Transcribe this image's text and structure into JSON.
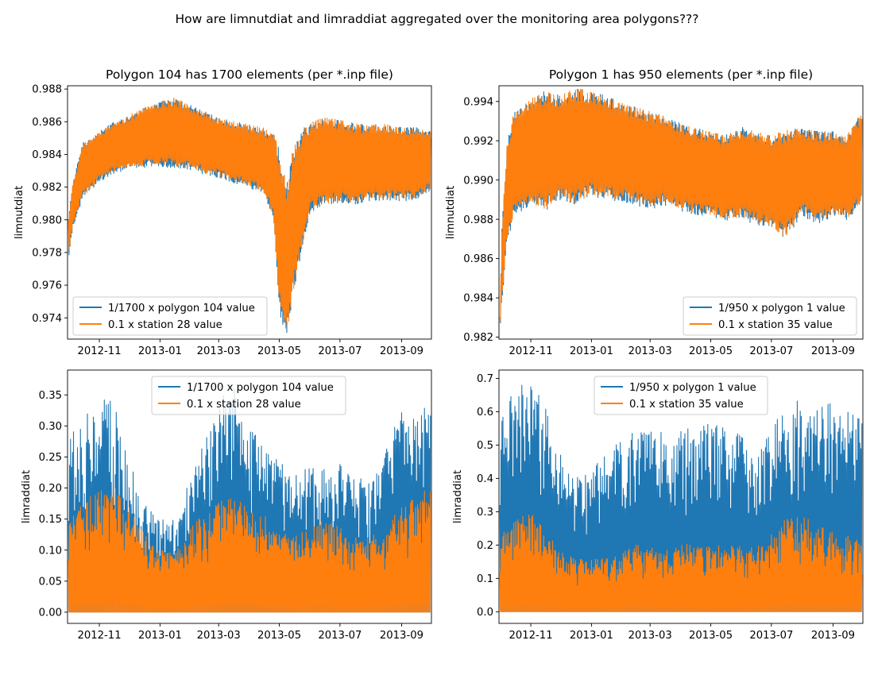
{
  "figure": {
    "suptitle": "How are limnutdiat and limraddiat aggregated over the monitoring area polygons???"
  },
  "chart_data": [
    {
      "type": "line",
      "title": "Polygon 104 has 1700 elements (per *.inp file)",
      "xlabel": "",
      "ylabel": "limnutdiat",
      "x_range": [
        "2012-09-30",
        "2013-10-01"
      ],
      "ylim": [
        0.9727,
        0.9882
      ],
      "x_ticks": [
        "2012-11",
        "2013-01",
        "2013-03",
        "2013-05",
        "2013-07",
        "2013-09"
      ],
      "y_ticks": [
        "0.974",
        "0.976",
        "0.978",
        "0.980",
        "0.982",
        "0.984",
        "0.986",
        "0.988"
      ],
      "legend_position": "lower-left",
      "grid": false,
      "band": "min-max envelope of high-frequency oscillation",
      "series": [
        {
          "name": "1/1700 x polygon 104 value",
          "color": "#1f77b4",
          "x": [
            "2012-10-01",
            "2012-10-05",
            "2012-10-15",
            "2012-11-01",
            "2012-11-15",
            "2012-12-01",
            "2012-12-15",
            "2013-01-01",
            "2013-01-15",
            "2013-02-01",
            "2013-02-15",
            "2013-03-01",
            "2013-03-15",
            "2013-04-01",
            "2013-04-15",
            "2013-04-25",
            "2013-05-01",
            "2013-05-08",
            "2013-05-15",
            "2013-05-25",
            "2013-06-01",
            "2013-06-15",
            "2013-07-01",
            "2013-07-15",
            "2013-08-01",
            "2013-08-15",
            "2013-09-01",
            "2013-09-15",
            "2013-09-30"
          ],
          "min": [
            0.9778,
            0.9795,
            0.9815,
            0.9825,
            0.983,
            0.9833,
            0.9834,
            0.9835,
            0.9834,
            0.9833,
            0.983,
            0.9828,
            0.9825,
            0.9822,
            0.9818,
            0.9805,
            0.975,
            0.9731,
            0.976,
            0.979,
            0.9808,
            0.9812,
            0.9813,
            0.9812,
            0.9814,
            0.9815,
            0.9814,
            0.9815,
            0.982
          ],
          "max": [
            0.98,
            0.982,
            0.9845,
            0.9852,
            0.9858,
            0.9862,
            0.9866,
            0.987,
            0.9872,
            0.9868,
            0.9864,
            0.986,
            0.9858,
            0.9856,
            0.9854,
            0.985,
            0.9838,
            0.9815,
            0.984,
            0.9852,
            0.9856,
            0.986,
            0.9858,
            0.9856,
            0.9855,
            0.9856,
            0.9854,
            0.9854,
            0.9852
          ]
        },
        {
          "name": "0.1 x station 28 value",
          "color": "#ff7f0e",
          "x": [
            "2012-10-01",
            "2012-10-05",
            "2012-10-15",
            "2012-11-01",
            "2012-11-15",
            "2012-12-01",
            "2012-12-15",
            "2013-01-01",
            "2013-01-15",
            "2013-02-01",
            "2013-02-15",
            "2013-03-01",
            "2013-03-15",
            "2013-04-01",
            "2013-04-15",
            "2013-04-25",
            "2013-05-01",
            "2013-05-08",
            "2013-05-15",
            "2013-05-25",
            "2013-06-01",
            "2013-06-15",
            "2013-07-01",
            "2013-07-15",
            "2013-08-01",
            "2013-08-15",
            "2013-09-01",
            "2013-09-15",
            "2013-09-30"
          ],
          "min": [
            0.9779,
            0.9796,
            0.9816,
            0.9826,
            0.9831,
            0.9834,
            0.9835,
            0.9836,
            0.9835,
            0.9834,
            0.9831,
            0.9829,
            0.9826,
            0.9823,
            0.9819,
            0.9806,
            0.9751,
            0.9732,
            0.9761,
            0.9791,
            0.9809,
            0.9813,
            0.9814,
            0.9813,
            0.9815,
            0.9816,
            0.9815,
            0.9816,
            0.9821
          ],
          "max": [
            0.98,
            0.982,
            0.9845,
            0.9852,
            0.9858,
            0.9862,
            0.9866,
            0.987,
            0.9872,
            0.9868,
            0.9864,
            0.986,
            0.9858,
            0.9856,
            0.9854,
            0.985,
            0.9838,
            0.9815,
            0.984,
            0.9852,
            0.9856,
            0.986,
            0.9858,
            0.9856,
            0.9855,
            0.9856,
            0.9854,
            0.9854,
            0.9852
          ]
        }
      ]
    },
    {
      "type": "line",
      "title": "Polygon 1 has 950 elements (per *.inp file)",
      "xlabel": "",
      "ylabel": "limnutdiat",
      "x_range": [
        "2012-09-30",
        "2013-10-01"
      ],
      "ylim": [
        0.9819,
        0.9948
      ],
      "x_ticks": [
        "2012-11",
        "2013-01",
        "2013-03",
        "2013-05",
        "2013-07",
        "2013-09"
      ],
      "y_ticks": [
        "0.982",
        "0.984",
        "0.986",
        "0.988",
        "0.990",
        "0.992",
        "0.994"
      ],
      "legend_position": "lower-right",
      "grid": false,
      "band": "min-max envelope of high-frequency oscillation",
      "series": [
        {
          "name": "1/950 x polygon 1 value",
          "color": "#1f77b4",
          "x": [
            "2012-10-01",
            "2012-10-03",
            "2012-10-08",
            "2012-10-15",
            "2012-11-01",
            "2012-11-15",
            "2012-12-01",
            "2012-12-15",
            "2013-01-01",
            "2013-01-15",
            "2013-02-01",
            "2013-02-15",
            "2013-03-01",
            "2013-03-15",
            "2013-04-01",
            "2013-04-15",
            "2013-05-01",
            "2013-05-15",
            "2013-06-01",
            "2013-06-15",
            "2013-07-01",
            "2013-07-15",
            "2013-08-01",
            "2013-08-15",
            "2013-09-01",
            "2013-09-15",
            "2013-09-30"
          ],
          "min": [
            0.9824,
            0.984,
            0.987,
            0.9885,
            0.989,
            0.9888,
            0.9893,
            0.989,
            0.9895,
            0.9893,
            0.9892,
            0.989,
            0.9888,
            0.989,
            0.9887,
            0.9885,
            0.9884,
            0.9882,
            0.9883,
            0.988,
            0.9878,
            0.9873,
            0.9885,
            0.988,
            0.9884,
            0.9882,
            0.989
          ],
          "max": [
            0.983,
            0.9875,
            0.9915,
            0.9932,
            0.9938,
            0.9942,
            0.994,
            0.9943,
            0.9942,
            0.994,
            0.9936,
            0.9934,
            0.9932,
            0.993,
            0.9926,
            0.9924,
            0.9922,
            0.992,
            0.9924,
            0.9922,
            0.992,
            0.9922,
            0.9924,
            0.9922,
            0.9922,
            0.992,
            0.9932
          ]
        },
        {
          "name": "0.1 x station 35 value",
          "color": "#ff7f0e",
          "x": [
            "2012-10-01",
            "2012-10-03",
            "2012-10-08",
            "2012-10-15",
            "2012-11-01",
            "2012-11-15",
            "2012-12-01",
            "2012-12-15",
            "2013-01-01",
            "2013-01-15",
            "2013-02-01",
            "2013-02-15",
            "2013-03-01",
            "2013-03-15",
            "2013-04-01",
            "2013-04-15",
            "2013-05-01",
            "2013-05-15",
            "2013-06-01",
            "2013-06-15",
            "2013-07-01",
            "2013-07-15",
            "2013-08-01",
            "2013-08-15",
            "2013-09-01",
            "2013-09-15",
            "2013-09-30"
          ],
          "min": [
            0.9825,
            0.9841,
            0.9871,
            0.9886,
            0.9891,
            0.9889,
            0.9894,
            0.9891,
            0.9896,
            0.9894,
            0.9893,
            0.9891,
            0.9889,
            0.9891,
            0.9888,
            0.9886,
            0.9885,
            0.9883,
            0.9884,
            0.9881,
            0.9879,
            0.9874,
            0.9886,
            0.9881,
            0.9885,
            0.9883,
            0.9891
          ],
          "max": [
            0.983,
            0.9875,
            0.9915,
            0.9932,
            0.9938,
            0.9942,
            0.994,
            0.9943,
            0.9942,
            0.994,
            0.9936,
            0.9934,
            0.9932,
            0.993,
            0.9926,
            0.9924,
            0.9922,
            0.992,
            0.9924,
            0.9922,
            0.992,
            0.9922,
            0.9924,
            0.9922,
            0.9922,
            0.992,
            0.9932
          ]
        }
      ]
    },
    {
      "type": "line",
      "title": "",
      "xlabel": "",
      "ylabel": "limraddiat",
      "x_range": [
        "2012-09-30",
        "2013-10-01"
      ],
      "ylim": [
        -0.018,
        0.39
      ],
      "x_ticks": [
        "2012-11",
        "2013-01",
        "2013-03",
        "2013-05",
        "2013-07",
        "2013-09"
      ],
      "y_ticks": [
        "0.00",
        "0.05",
        "0.10",
        "0.15",
        "0.20",
        "0.25",
        "0.30",
        "0.35"
      ],
      "legend_position": "upper-center",
      "grid": false,
      "band": "daily cycle from 0 up to the daily peak",
      "series": [
        {
          "name": "1/1700 x polygon 104 value",
          "color": "#1f77b4",
          "x": [
            "2012-10-01",
            "2012-10-15",
            "2012-11-01",
            "2012-11-15",
            "2012-12-01",
            "2012-12-15",
            "2013-01-01",
            "2013-01-15",
            "2013-02-01",
            "2013-02-15",
            "2013-03-01",
            "2013-03-15",
            "2013-04-01",
            "2013-04-15",
            "2013-05-01",
            "2013-05-15",
            "2013-06-01",
            "2013-06-15",
            "2013-07-01",
            "2013-07-15",
            "2013-08-01",
            "2013-08-15",
            "2013-09-01",
            "2013-09-15",
            "2013-09-30"
          ],
          "peak": [
            0.28,
            0.31,
            0.36,
            0.34,
            0.25,
            0.18,
            0.15,
            0.16,
            0.22,
            0.28,
            0.34,
            0.37,
            0.3,
            0.27,
            0.25,
            0.22,
            0.24,
            0.23,
            0.24,
            0.22,
            0.21,
            0.26,
            0.33,
            0.32,
            0.35
          ]
        },
        {
          "name": "0.1 x station 28 value",
          "color": "#ff7f0e",
          "x": [
            "2012-10-01",
            "2012-10-15",
            "2012-11-01",
            "2012-11-15",
            "2012-12-01",
            "2012-12-15",
            "2013-01-01",
            "2013-01-15",
            "2013-02-01",
            "2013-02-15",
            "2013-03-01",
            "2013-03-15",
            "2013-04-01",
            "2013-04-15",
            "2013-05-01",
            "2013-05-15",
            "2013-06-01",
            "2013-06-15",
            "2013-07-01",
            "2013-07-15",
            "2013-08-01",
            "2013-08-15",
            "2013-09-01",
            "2013-09-15",
            "2013-09-30"
          ],
          "peak": [
            0.16,
            0.18,
            0.2,
            0.21,
            0.17,
            0.13,
            0.1,
            0.11,
            0.14,
            0.16,
            0.18,
            0.19,
            0.17,
            0.16,
            0.14,
            0.12,
            0.14,
            0.15,
            0.14,
            0.12,
            0.12,
            0.14,
            0.17,
            0.19,
            0.2
          ]
        }
      ]
    },
    {
      "type": "line",
      "title": "",
      "xlabel": "",
      "ylabel": "limraddiat",
      "x_range": [
        "2012-09-30",
        "2013-10-01"
      ],
      "ylim": [
        -0.035,
        0.725
      ],
      "x_ticks": [
        "2012-11",
        "2013-01",
        "2013-03",
        "2013-05",
        "2013-07",
        "2013-09"
      ],
      "y_ticks": [
        "0.0",
        "0.1",
        "0.2",
        "0.3",
        "0.4",
        "0.5",
        "0.6",
        "0.7"
      ],
      "legend_position": "upper-center",
      "grid": false,
      "band": "daily cycle from 0 up to the daily peak",
      "series": [
        {
          "name": "1/950 x polygon 1 value",
          "color": "#1f77b4",
          "x": [
            "2012-10-01",
            "2012-10-15",
            "2012-11-01",
            "2012-11-15",
            "2012-12-01",
            "2012-12-15",
            "2013-01-01",
            "2013-01-15",
            "2013-02-01",
            "2013-02-15",
            "2013-03-01",
            "2013-03-15",
            "2013-04-01",
            "2013-04-15",
            "2013-05-01",
            "2013-05-15",
            "2013-06-01",
            "2013-06-15",
            "2013-07-01",
            "2013-07-15",
            "2013-08-01",
            "2013-08-15",
            "2013-09-01",
            "2013-09-15",
            "2013-09-30"
          ],
          "peak": [
            0.6,
            0.68,
            0.69,
            0.62,
            0.47,
            0.4,
            0.42,
            0.48,
            0.52,
            0.55,
            0.56,
            0.54,
            0.57,
            0.55,
            0.57,
            0.55,
            0.53,
            0.47,
            0.56,
            0.62,
            0.66,
            0.62,
            0.63,
            0.6,
            0.6
          ]
        },
        {
          "name": "0.1 x station 35 value",
          "color": "#ff7f0e",
          "x": [
            "2012-10-01",
            "2012-10-15",
            "2012-11-01",
            "2012-11-15",
            "2012-12-01",
            "2012-12-15",
            "2013-01-01",
            "2013-01-15",
            "2013-02-01",
            "2013-02-15",
            "2013-03-01",
            "2013-03-15",
            "2013-04-01",
            "2013-04-15",
            "2013-05-01",
            "2013-05-15",
            "2013-06-01",
            "2013-06-15",
            "2013-07-01",
            "2013-07-15",
            "2013-08-01",
            "2013-08-15",
            "2013-09-01",
            "2013-09-15",
            "2013-09-30"
          ],
          "peak": [
            0.22,
            0.29,
            0.3,
            0.25,
            0.18,
            0.16,
            0.16,
            0.17,
            0.18,
            0.2,
            0.2,
            0.19,
            0.2,
            0.21,
            0.2,
            0.21,
            0.2,
            0.19,
            0.24,
            0.28,
            0.29,
            0.26,
            0.24,
            0.23,
            0.22
          ]
        }
      ]
    }
  ]
}
